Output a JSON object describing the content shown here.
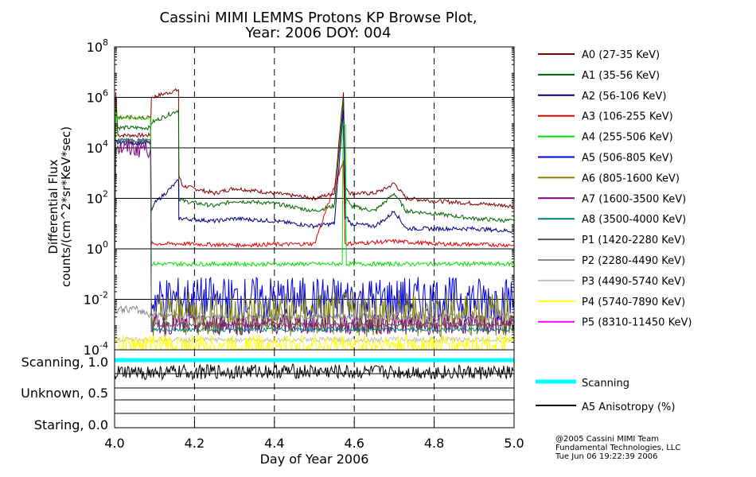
{
  "chart_data": {
    "type": "line",
    "title": "Cassini MIMI LEMMS Protons KP Browse Plot,",
    "subtitle": "Year: 2006 DOY: 004",
    "xlabel": "Day of Year 2006",
    "ylabel": [
      "Differential Flux",
      "counts/(cm^2*sr*KeV*sec)"
    ],
    "xlim": [
      4.0,
      5.0
    ],
    "xticks": [
      "4.0",
      "4.2",
      "4.4",
      "4.6",
      "4.8",
      "5.0"
    ],
    "ylim_log10": [
      -4,
      8
    ],
    "yscale": "log",
    "yticks": [
      {
        "base": "10",
        "exp": "8"
      },
      {
        "base": "10",
        "exp": "6"
      },
      {
        "base": "10",
        "exp": "4"
      },
      {
        "base": "10",
        "exp": "2"
      },
      {
        "base": "10",
        "exp": "0"
      },
      {
        "base": "10",
        "exp": "-2"
      },
      {
        "base": "10",
        "exp": "-4"
      }
    ],
    "grid": true,
    "legend_position": "right",
    "series": [
      {
        "name": "A0 (27-35 KeV)",
        "color": "#7f0000",
        "x": [
          4.0,
          4.003,
          4.008,
          4.06,
          4.09,
          4.092,
          4.16,
          4.161,
          4.17,
          4.25,
          4.3,
          4.4,
          4.5,
          4.55,
          4.573,
          4.577,
          4.581,
          4.59,
          4.65,
          4.68,
          4.7,
          4.73,
          4.8,
          4.9,
          5.0
        ],
        "y_log10": [
          0.0,
          6.2,
          4.5,
          4.5,
          4.5,
          6.0,
          6.3,
          2.9,
          2.5,
          2.2,
          2.4,
          2.2,
          2.0,
          2.2,
          6.2,
          2.3,
          2.4,
          2.2,
          2.2,
          2.4,
          2.6,
          2.0,
          1.9,
          1.8,
          1.7
        ]
      },
      {
        "name": "A1 (35-56 KeV)",
        "color": "#006400",
        "x": [
          4.0,
          4.003,
          4.008,
          4.06,
          4.09,
          4.092,
          4.16,
          4.161,
          4.17,
          4.25,
          4.3,
          4.4,
          4.5,
          4.55,
          4.573,
          4.577,
          4.581,
          4.59,
          4.65,
          4.68,
          4.7,
          4.73,
          4.8,
          4.9,
          5.0
        ],
        "y_log10": [
          0.0,
          5.7,
          4.8,
          4.8,
          4.8,
          5.0,
          5.5,
          2.0,
          1.9,
          1.7,
          1.9,
          1.8,
          1.5,
          1.7,
          5.9,
          1.8,
          2.0,
          1.7,
          1.5,
          1.9,
          2.2,
          1.5,
          1.4,
          1.2,
          1.1
        ]
      },
      {
        "name": "A2 (56-106 KeV)",
        "color": "#00007f",
        "x": [
          4.0,
          4.003,
          4.008,
          4.06,
          4.09,
          4.092,
          4.1,
          4.16,
          4.161,
          4.17,
          4.25,
          4.3,
          4.4,
          4.5,
          4.55,
          4.573,
          4.577,
          4.581,
          4.59,
          4.65,
          4.68,
          4.7,
          4.73,
          4.8,
          4.9,
          5.0
        ],
        "y_log10": [
          0.0,
          4.3,
          4.2,
          4.2,
          4.2,
          1.5,
          1.8,
          2.7,
          1.2,
          1.2,
          1.1,
          1.2,
          1.1,
          0.9,
          1.0,
          5.5,
          1.2,
          1.3,
          1.0,
          0.9,
          1.2,
          1.5,
          0.8,
          0.8,
          0.8,
          0.7
        ]
      },
      {
        "name": "A3 (106-255 KeV)",
        "color": "#e00000",
        "x": [
          4.0,
          4.003,
          4.008,
          4.09,
          4.092,
          4.16,
          4.17,
          4.3,
          4.5,
          4.573,
          4.577,
          4.581,
          4.7,
          4.8,
          5.0
        ],
        "y_log10": [
          0.0,
          5.3,
          5.2,
          5.2,
          0.2,
          0.2,
          0.2,
          0.15,
          0.2,
          3.5,
          0.2,
          0.2,
          0.3,
          0.2,
          0.15
        ]
      },
      {
        "name": "A4 (255-506 KeV)",
        "color": "#00e000",
        "x": [
          4.0,
          4.003,
          4.008,
          4.09,
          4.092,
          4.3,
          4.5,
          4.57,
          4.572,
          4.578,
          4.58,
          4.7,
          5.0
        ],
        "y_log10": [
          -0.8,
          5.4,
          5.2,
          5.2,
          -0.6,
          -0.6,
          -0.6,
          -0.6,
          4.9,
          4.9,
          -0.6,
          -0.6,
          -0.6
        ]
      },
      {
        "name": "A5 (506-805 KeV)",
        "color": "#0000e0",
        "x": [
          4.092,
          4.2,
          4.4,
          4.6,
          4.8,
          5.0
        ],
        "y_log10": [
          -2.0,
          -2.0,
          -2.0,
          -2.0,
          -2.0,
          -2.0
        ]
      },
      {
        "name": "A6 (805-1600 KeV)",
        "color": "#7f7f00",
        "x": [
          4.092,
          4.2,
          4.4,
          4.6,
          4.8,
          5.0
        ],
        "y_log10": [
          -2.6,
          -2.6,
          -2.6,
          -2.6,
          -2.6,
          -2.6
        ]
      },
      {
        "name": "A7 (1600-3500 KeV)",
        "color": "#7f007f",
        "x": [
          4.0,
          4.003,
          4.008,
          4.09,
          4.092,
          4.3,
          4.6,
          5.0
        ],
        "y_log10": [
          -1.0,
          4.0,
          4.0,
          4.0,
          -3.0,
          -3.0,
          -3.0,
          -3.0
        ]
      },
      {
        "name": "A8 (3500-4000 KeV)",
        "color": "#007f7f",
        "x": [
          4.0,
          4.003,
          4.008,
          4.09,
          4.092,
          4.3,
          4.6,
          5.0
        ],
        "y_log10": [
          -1.0,
          4.3,
          4.3,
          4.3,
          -3.2,
          -3.2,
          -3.2,
          -3.2
        ]
      },
      {
        "name": "P1 (1420-2280 KeV)",
        "color": "#555555",
        "x": [
          4.0,
          4.003,
          4.008,
          4.09,
          4.092,
          5.0
        ],
        "y_log10": [
          -1.0,
          4.3,
          4.3,
          4.3,
          -3.0,
          -3.0
        ]
      },
      {
        "name": "P2 (2280-4490 KeV)",
        "color": "#888888",
        "x": [
          4.0,
          4.05,
          4.092,
          4.3,
          4.6,
          5.0
        ],
        "y_log10": [
          -2.4,
          -2.4,
          -2.6,
          -2.7,
          -2.7,
          -2.7
        ]
      },
      {
        "name": "P3 (4490-5740 KeV)",
        "color": "#bfbfbf",
        "x": [
          4.0,
          5.0
        ],
        "y_log10": [
          -3.6,
          -3.6
        ]
      },
      {
        "name": "P4 (5740-7890 KeV)",
        "color": "#ffff00",
        "x": [
          4.0,
          4.2,
          4.4,
          4.6,
          5.0
        ],
        "y_log10": [
          -3.8,
          -3.8,
          -3.8,
          -3.8,
          -3.8
        ]
      },
      {
        "name": "P5 (8310-11450 KeV)",
        "color": "#ff00ff",
        "x": [],
        "y_log10": []
      }
    ],
    "lower_panel": {
      "yticks": [
        "Scanning, 1.0",
        "Unknown, 0.5",
        "Staring, 0.0"
      ],
      "series": [
        {
          "name": "Scanning",
          "color": "#00ffff",
          "x": [
            4.0,
            5.0
          ],
          "y": [
            1.0,
            1.0
          ]
        },
        {
          "name": "A5 Anisotropy (%)",
          "color": "#000000",
          "x": [
            4.0,
            4.2,
            4.4,
            4.6,
            4.8,
            5.0
          ],
          "y": [
            0.78,
            0.8,
            0.82,
            0.8,
            0.8,
            0.78
          ]
        }
      ]
    }
  },
  "credits": [
    "@2005 Cassini MIMI Team",
    "Fundamental Technologies, LLC",
    "Tue Jun 06 19:22:39 2006"
  ]
}
